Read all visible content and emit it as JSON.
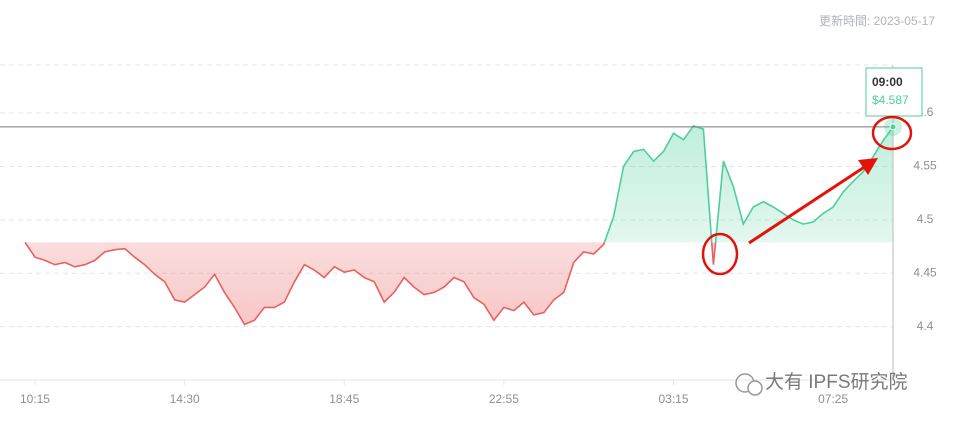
{
  "header": {
    "updated": "更新時間: 2023-05-17"
  },
  "watermark": "大有 IPFS研究院",
  "chart_data": {
    "type": "line",
    "categories": [
      null,
      "10:15",
      null,
      null,
      null,
      null,
      null,
      null,
      null,
      null,
      null,
      null,
      null,
      null,
      null,
      null,
      "14:30",
      null,
      null,
      null,
      null,
      null,
      null,
      null,
      null,
      null,
      null,
      null,
      null,
      null,
      null,
      null,
      "18:45",
      null,
      null,
      null,
      null,
      null,
      null,
      null,
      null,
      null,
      null,
      null,
      null,
      null,
      null,
      null,
      "22:55",
      null,
      null,
      null,
      null,
      null,
      null,
      null,
      null,
      null,
      null,
      null,
      null,
      null,
      null,
      null,
      null,
      "03:15",
      null,
      null,
      null,
      null,
      null,
      null,
      null,
      null,
      null,
      null,
      null,
      null,
      null,
      null,
      null,
      "07:25",
      null,
      null,
      null,
      null,
      null,
      null
    ],
    "values": [
      4.479,
      4.465,
      4.462,
      4.458,
      4.46,
      4.456,
      4.458,
      4.462,
      4.47,
      4.472,
      4.473,
      4.465,
      4.458,
      4.449,
      4.442,
      4.425,
      4.423,
      4.43,
      4.437,
      4.449,
      4.432,
      4.418,
      4.402,
      4.406,
      4.418,
      4.418,
      4.423,
      4.442,
      4.458,
      4.453,
      4.446,
      4.456,
      4.451,
      4.453,
      4.446,
      4.442,
      4.423,
      4.432,
      4.446,
      4.437,
      4.43,
      4.432,
      4.437,
      4.446,
      4.442,
      4.427,
      4.421,
      4.406,
      4.418,
      4.415,
      4.423,
      4.411,
      4.413,
      4.425,
      4.432,
      4.46,
      4.47,
      4.468,
      4.477,
      4.503,
      4.55,
      4.564,
      4.566,
      4.555,
      4.564,
      4.581,
      4.575,
      4.588,
      4.585,
      4.458,
      4.555,
      4.531,
      4.496,
      4.512,
      4.517,
      4.512,
      4.506,
      4.5,
      4.496,
      4.498,
      4.506,
      4.512,
      4.526,
      4.536,
      4.545,
      4.559,
      4.574,
      4.587
    ],
    "baseline": 4.479,
    "up_color": "#4ccf9b",
    "down_color": "#e8605f",
    "ylim": [
      4.35,
      4.645
    ],
    "yticks": [
      4.4,
      4.45,
      4.5,
      4.55,
      4.6
    ],
    "grid": true,
    "tooltip": {
      "time": "09:00",
      "value": 4.587,
      "label": "$4.587"
    }
  }
}
